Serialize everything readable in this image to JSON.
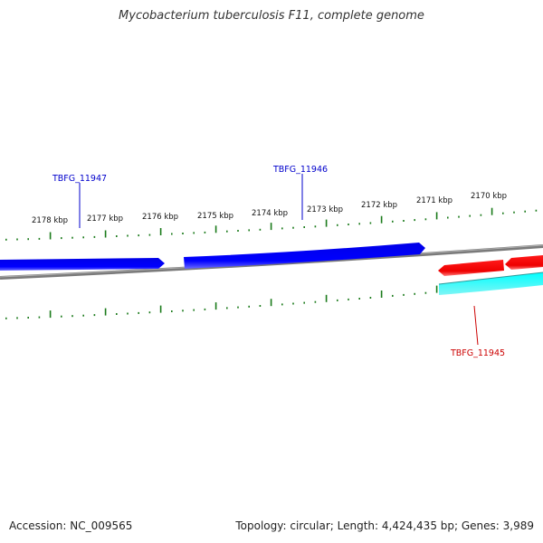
{
  "title": "Mycobacterium tuberculosis F11, complete genome",
  "footer": {
    "accession": "Accession: NC_009565",
    "summary": "Topology: circular; Length: 4,424,435 bp; Genes: 3,989"
  },
  "tick_labels": [
    "2178 kbp",
    "2177 kbp",
    "2176 kbp",
    "2175 kbp",
    "2174 kbp",
    "2173 kbp",
    "2172 kbp",
    "2171 kbp",
    "2170 kbp"
  ],
  "genes": [
    {
      "id": "TBFG_11947",
      "strand": "forward",
      "color": "#0000cc"
    },
    {
      "id": "TBFG_11946",
      "strand": "forward",
      "color": "#0000cc"
    },
    {
      "id": "TBFG_11945",
      "strand": "reverse",
      "color": "#cc0000"
    }
  ],
  "colors": {
    "forward_gene": "#0000ff",
    "reverse_gene": "#ff0000",
    "gc_track": "#00e5ee",
    "backbone": "#808080",
    "tick": "#1a7a1a"
  }
}
